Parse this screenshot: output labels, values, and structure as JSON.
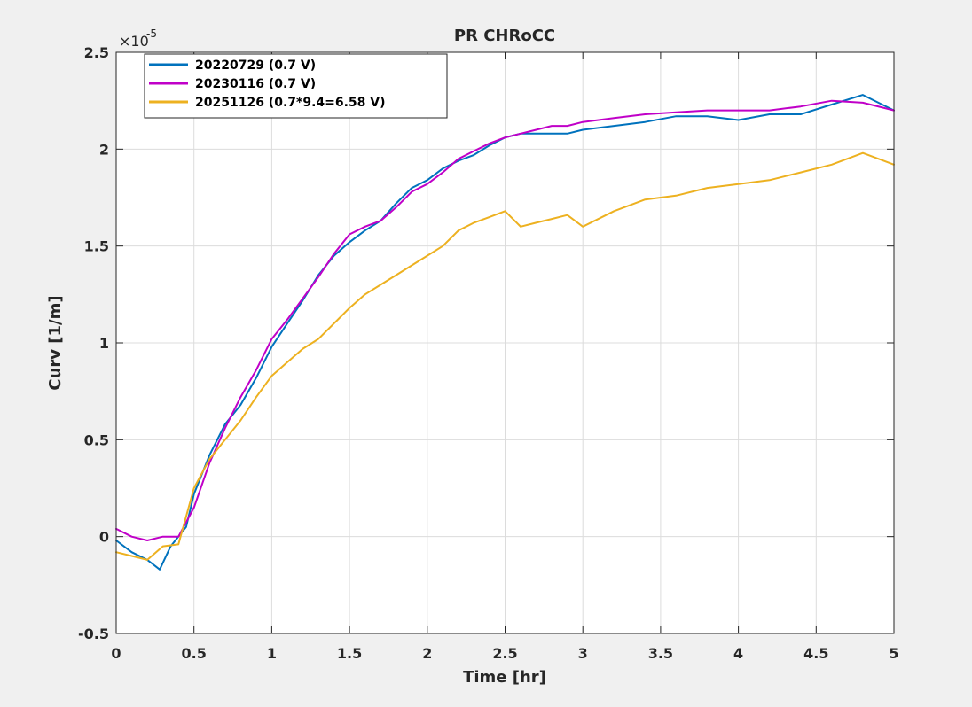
{
  "chart_data": {
    "type": "line",
    "title": "PR CHRoCC",
    "xlabel": "Time [hr]",
    "ylabel": "Curv [1/m]",
    "y_multiplier_base": "×10",
    "y_multiplier_exp": "-5",
    "xlim": [
      0,
      5
    ],
    "ylim": [
      -0.5,
      2.5
    ],
    "xticks": [
      0,
      0.5,
      1,
      1.5,
      2,
      2.5,
      3,
      3.5,
      4,
      4.5,
      5
    ],
    "xtick_labels": [
      "0",
      "0.5",
      "1",
      "1.5",
      "2",
      "2.5",
      "3",
      "3.5",
      "4",
      "4.5",
      "5"
    ],
    "yticks": [
      -0.5,
      0,
      0.5,
      1,
      1.5,
      2,
      2.5
    ],
    "ytick_labels": [
      "-0.5",
      "0",
      "0.5",
      "1",
      "1.5",
      "2",
      "2.5"
    ],
    "grid": true,
    "legend_position": "top-left",
    "series": [
      {
        "name": "20220729 (0.7 V)",
        "color": "#0072BD",
        "x": [
          0,
          0.1,
          0.2,
          0.28,
          0.35,
          0.45,
          0.5,
          0.6,
          0.7,
          0.8,
          0.9,
          1.0,
          1.1,
          1.2,
          1.3,
          1.4,
          1.5,
          1.6,
          1.7,
          1.8,
          1.9,
          2.0,
          2.1,
          2.2,
          2.3,
          2.4,
          2.5,
          2.6,
          2.7,
          2.8,
          2.9,
          3.0,
          3.2,
          3.4,
          3.6,
          3.8,
          4.0,
          4.2,
          4.4,
          4.6,
          4.8,
          5.0
        ],
        "y": [
          -0.02,
          -0.08,
          -0.12,
          -0.17,
          -0.05,
          0.05,
          0.22,
          0.42,
          0.58,
          0.68,
          0.82,
          0.98,
          1.1,
          1.22,
          1.35,
          1.45,
          1.52,
          1.58,
          1.63,
          1.72,
          1.8,
          1.84,
          1.9,
          1.94,
          1.97,
          2.02,
          2.06,
          2.08,
          2.08,
          2.08,
          2.08,
          2.1,
          2.12,
          2.14,
          2.17,
          2.17,
          2.15,
          2.18,
          2.18,
          2.23,
          2.28,
          2.2
        ]
      },
      {
        "name": "20230116 (0.7 V)",
        "color": "#C000C8",
        "x": [
          0,
          0.1,
          0.2,
          0.3,
          0.4,
          0.5,
          0.6,
          0.7,
          0.8,
          0.9,
          1.0,
          1.1,
          1.2,
          1.3,
          1.4,
          1.5,
          1.6,
          1.7,
          1.8,
          1.9,
          2.0,
          2.1,
          2.2,
          2.3,
          2.4,
          2.5,
          2.6,
          2.7,
          2.8,
          2.9,
          3.0,
          3.2,
          3.4,
          3.6,
          3.8,
          4.0,
          4.2,
          4.4,
          4.6,
          4.8,
          5.0
        ],
        "y": [
          0.04,
          0.0,
          -0.02,
          0.0,
          0.0,
          0.15,
          0.38,
          0.56,
          0.72,
          0.86,
          1.02,
          1.12,
          1.23,
          1.34,
          1.46,
          1.56,
          1.6,
          1.63,
          1.7,
          1.78,
          1.82,
          1.88,
          1.95,
          1.99,
          2.03,
          2.06,
          2.08,
          2.1,
          2.12,
          2.12,
          2.14,
          2.16,
          2.18,
          2.19,
          2.2,
          2.2,
          2.2,
          2.22,
          2.25,
          2.24,
          2.2
        ]
      },
      {
        "name": "20251126 (0.7*9.4=6.58 V)",
        "color": "#EDB120",
        "x": [
          0,
          0.1,
          0.2,
          0.3,
          0.4,
          0.5,
          0.6,
          0.7,
          0.8,
          0.9,
          1.0,
          1.1,
          1.2,
          1.3,
          1.4,
          1.5,
          1.6,
          1.7,
          1.8,
          1.9,
          2.0,
          2.1,
          2.2,
          2.3,
          2.4,
          2.5,
          2.6,
          2.7,
          2.8,
          2.9,
          3.0,
          3.2,
          3.4,
          3.6,
          3.8,
          4.0,
          4.2,
          4.4,
          4.6,
          4.8,
          5.0
        ],
        "y": [
          -0.08,
          -0.1,
          -0.12,
          -0.05,
          -0.04,
          0.25,
          0.4,
          0.5,
          0.6,
          0.72,
          0.83,
          0.9,
          0.97,
          1.02,
          1.1,
          1.18,
          1.25,
          1.3,
          1.35,
          1.4,
          1.45,
          1.5,
          1.58,
          1.62,
          1.65,
          1.68,
          1.6,
          1.62,
          1.64,
          1.66,
          1.6,
          1.68,
          1.74,
          1.76,
          1.8,
          1.82,
          1.84,
          1.88,
          1.92,
          1.98,
          1.92
        ]
      }
    ]
  }
}
